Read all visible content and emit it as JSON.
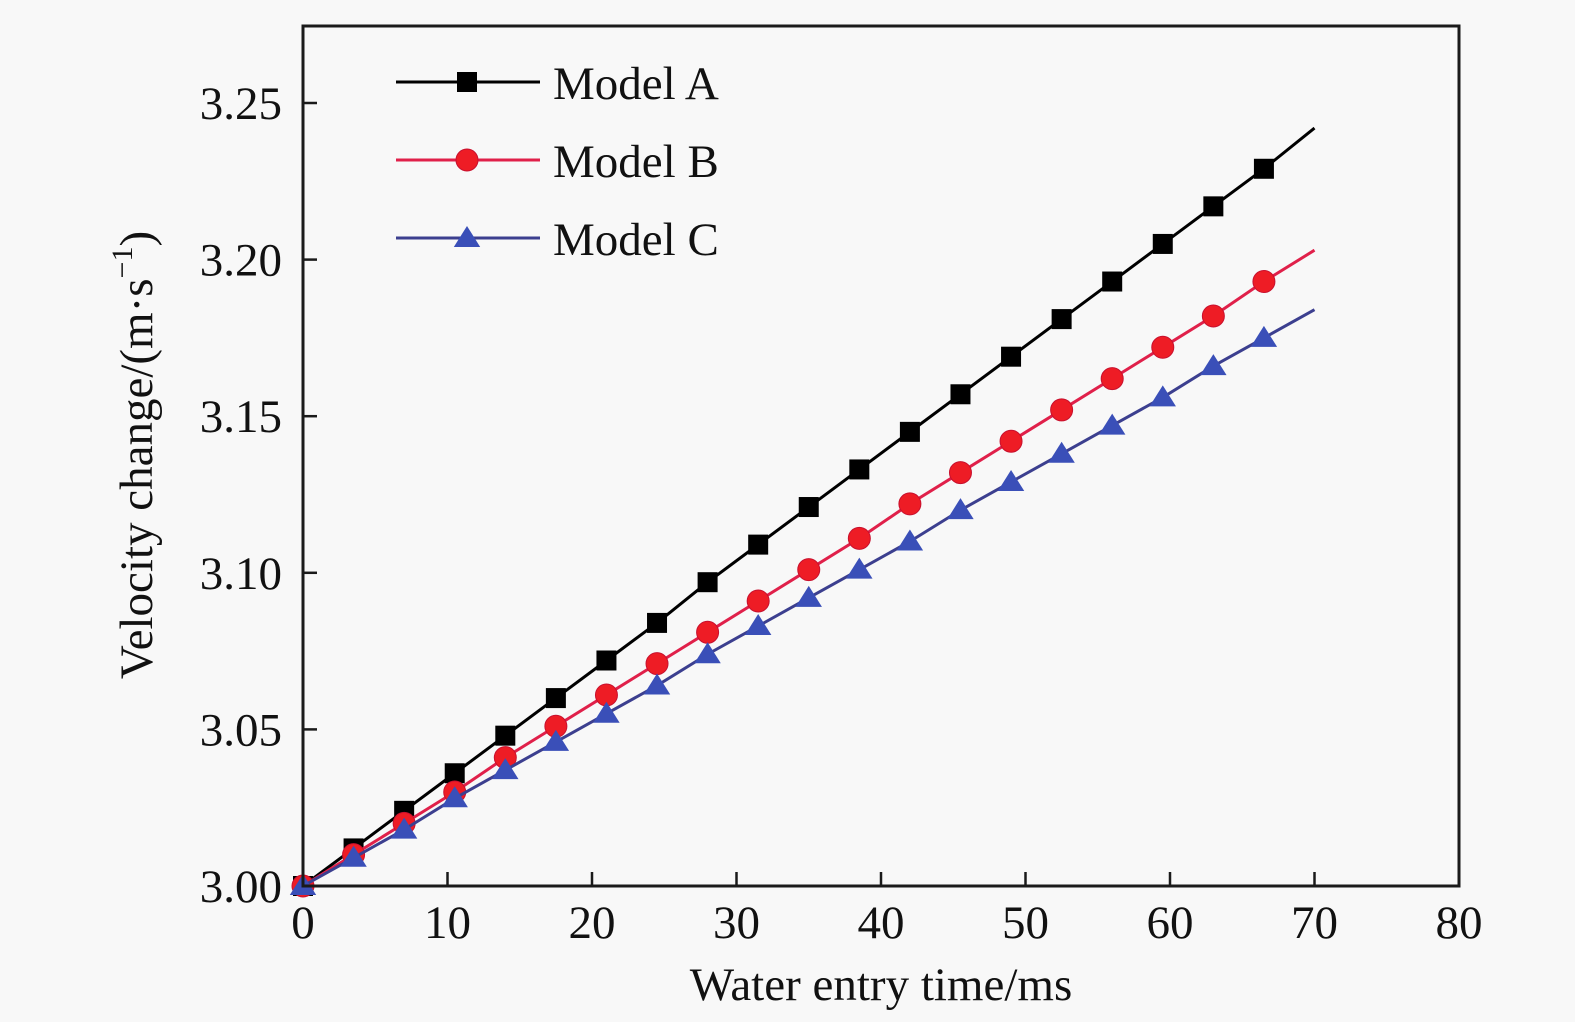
{
  "chart_data": {
    "type": "line",
    "title": "",
    "xlabel": "Water entry time/ms",
    "ylabel": "Velocity change/(m·s",
    "ylabel_superscript": "−1",
    "ylabel_suffix": ")",
    "xlim": [
      0,
      80
    ],
    "ylim": [
      3.0,
      3.27
    ],
    "xticks": [
      0,
      10,
      20,
      30,
      40,
      50,
      60,
      70,
      80
    ],
    "xtick_labels": [
      "0",
      "10",
      "20",
      "30",
      "40",
      "50",
      "60",
      "70",
      "80"
    ],
    "yticks": [
      3.0,
      3.05,
      3.1,
      3.15,
      3.2,
      3.25
    ],
    "ytick_labels": [
      "3.00",
      "3.05",
      "3.10",
      "3.15",
      "3.20",
      "3.25"
    ],
    "grid": false,
    "legend_position": "top-left",
    "x": [
      0,
      3.5,
      7,
      10.5,
      14,
      17.5,
      21,
      24.5,
      28,
      31.5,
      35,
      38.5,
      42,
      45.5,
      49,
      52.5,
      56,
      59.5,
      63,
      66.5
    ],
    "line_end_x": 70,
    "series": [
      {
        "name": "Model A",
        "marker": "square",
        "color": "#000000",
        "line_color": "#000000",
        "values": [
          3.0,
          3.012,
          3.024,
          3.036,
          3.048,
          3.06,
          3.072,
          3.084,
          3.097,
          3.109,
          3.121,
          3.133,
          3.145,
          3.157,
          3.169,
          3.181,
          3.193,
          3.205,
          3.217,
          3.229
        ],
        "line_end_value": 3.242
      },
      {
        "name": "Model B",
        "marker": "circle",
        "color": "#ee1c25",
        "line_color": "#e0204a",
        "values": [
          3.0,
          3.01,
          3.02,
          3.03,
          3.041,
          3.051,
          3.061,
          3.071,
          3.081,
          3.091,
          3.101,
          3.111,
          3.122,
          3.132,
          3.142,
          3.152,
          3.162,
          3.172,
          3.182,
          3.193
        ],
        "line_end_value": 3.203
      },
      {
        "name": "Model C",
        "marker": "triangle",
        "color": "#3a4fb8",
        "line_color": "#3c3f8f",
        "values": [
          3.0,
          3.009,
          3.018,
          3.028,
          3.037,
          3.046,
          3.055,
          3.064,
          3.074,
          3.083,
          3.092,
          3.101,
          3.11,
          3.12,
          3.129,
          3.138,
          3.147,
          3.156,
          3.166,
          3.175
        ],
        "line_end_value": 3.184
      }
    ]
  }
}
